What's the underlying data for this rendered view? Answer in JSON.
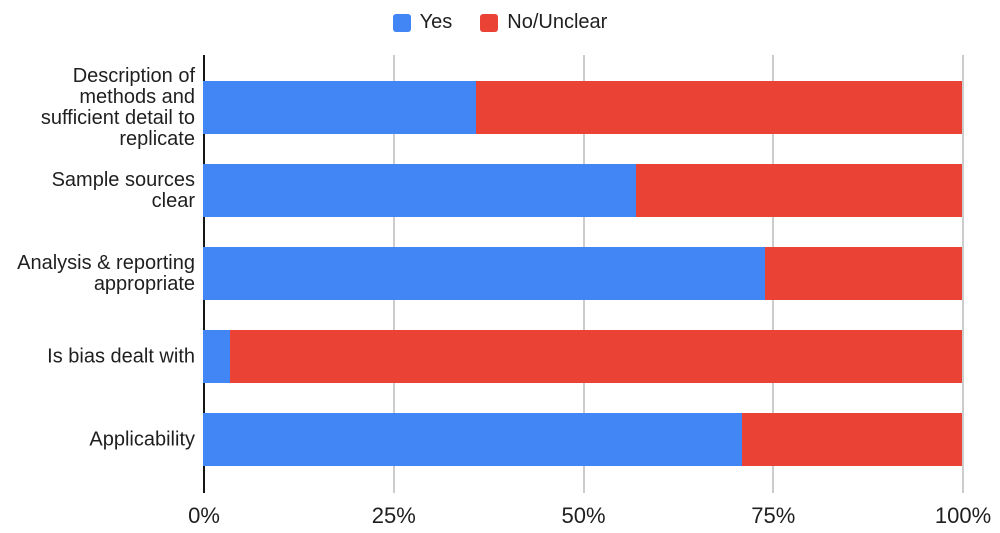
{
  "chart_data": {
    "type": "bar",
    "orientation": "horizontal",
    "stacked": true,
    "stack_total_percent": 100,
    "categories": [
      "Description of\nmethods and\nsufficient detail to\nreplicate",
      "Sample sources\nclear",
      "Analysis & reporting\nappropriate",
      "Is bias dealt with",
      "Applicability"
    ],
    "series": [
      {
        "name": "Yes",
        "color": "#4285F4",
        "values": [
          36,
          57,
          74,
          3.5,
          71
        ]
      },
      {
        "name": "No/Unclear",
        "color": "#EA4335",
        "values": [
          64,
          43,
          26,
          96.5,
          29
        ]
      }
    ],
    "x_axis": {
      "min": 0,
      "max": 100,
      "unit": "%",
      "ticks": [
        {
          "label": "0%",
          "value": 0
        },
        {
          "label": "25%",
          "value": 25
        },
        {
          "label": "50%",
          "value": 50
        },
        {
          "label": "75%",
          "value": 75
        },
        {
          "label": "100%",
          "value": 100
        }
      ]
    },
    "legend_position": "top",
    "grid": true
  },
  "colors": {
    "background": "#ffffff",
    "axis_line": "#161616",
    "gridline": "#cccccc",
    "text": "#1f1f1f",
    "yes": "#4285F4",
    "no_unclear": "#EA4335"
  }
}
